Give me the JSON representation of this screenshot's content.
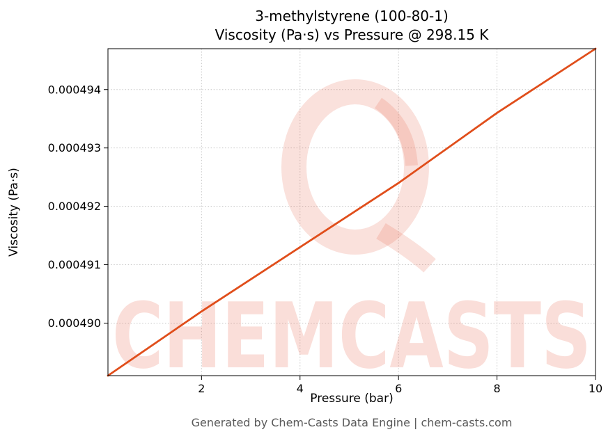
{
  "page": {
    "title_line1": "3-methylstyrene (100-80-1)",
    "title_line2": "Viscosity (Pa·s) vs Pressure @ 298.15 K",
    "footer": "Generated by Chem-Casts Data Engine | chem-casts.com",
    "watermark": "CHEMCASTS",
    "background_color": "#ffffff",
    "watermark_color": "#f6d2c9"
  },
  "chart_data": {
    "type": "line",
    "title": "3-methylstyrene (100-80-1)\nViscosity (Pa·s) vs Pressure @ 298.15 K",
    "xlabel": "Pressure (bar)",
    "ylabel": "Viscosity (Pa·s)",
    "xlim": [
      0.1,
      10
    ],
    "ylim": [
      0.0004891,
      0.0004947
    ],
    "grid": true,
    "grid_style": "dotted",
    "legend_position": "none",
    "xticks": {
      "values": [
        2,
        4,
        6,
        8,
        10
      ],
      "labels": [
        "2",
        "4",
        "6",
        "8",
        "10"
      ]
    },
    "yticks": {
      "values": [
        0.00049,
        0.000491,
        0.000492,
        0.000493,
        0.000494
      ],
      "labels": [
        "0.000490",
        "0.000491",
        "0.000492",
        "0.000493",
        "0.000494"
      ]
    },
    "series": [
      {
        "name": "Viscosity vs Pressure",
        "color": "#e04e1b",
        "line_width": 2.8,
        "x": [
          0.1,
          2,
          4,
          6,
          8,
          10
        ],
        "y": [
          0.0004891,
          0.0004902,
          0.0004913,
          0.0004924,
          0.0004936,
          0.0004947
        ]
      }
    ]
  }
}
